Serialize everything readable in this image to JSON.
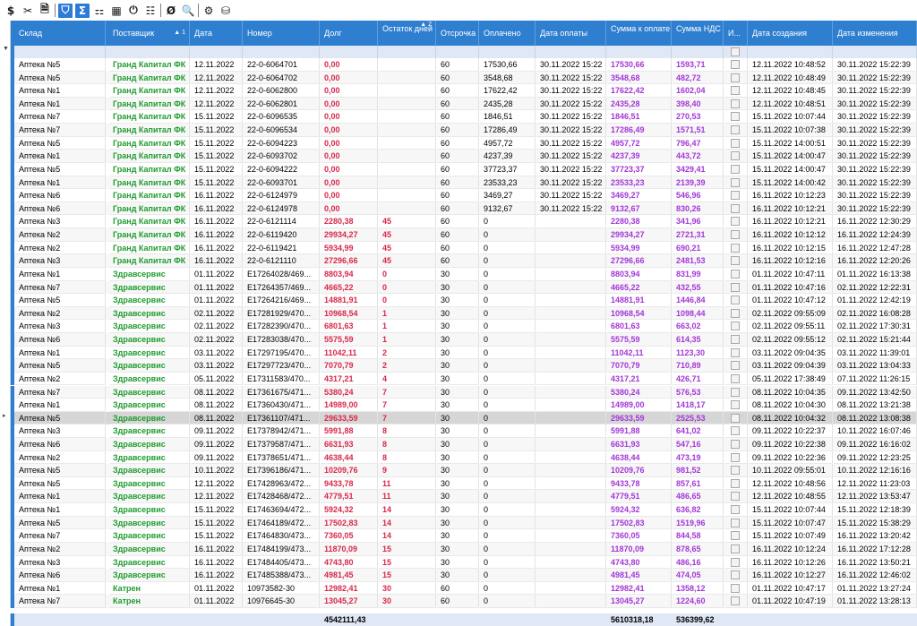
{
  "toolbar": {
    "buttons": [
      {
        "name": "dollar-icon",
        "glyph": "$",
        "active": false
      },
      {
        "name": "cut-icon",
        "glyph": "✂",
        "active": false
      },
      {
        "name": "document-icon",
        "glyph": "🗎",
        "active": false
      },
      {
        "name": "filter-icon",
        "glyph": "⛉",
        "active": true
      },
      {
        "name": "sum-icon",
        "glyph": "Σ",
        "active": true
      },
      {
        "name": "hierarchy-icon",
        "glyph": "⚏",
        "active": false
      },
      {
        "name": "grid-icon",
        "glyph": "▦",
        "active": false
      },
      {
        "name": "power-icon",
        "glyph": "⏻",
        "active": false
      },
      {
        "name": "table-icon",
        "glyph": "☷",
        "active": false
      },
      {
        "name": "null-icon",
        "glyph": "Ø",
        "active": false
      },
      {
        "name": "search-doc-icon",
        "glyph": "🔍",
        "active": false
      },
      {
        "name": "settings-icon",
        "glyph": "⚙",
        "active": false
      },
      {
        "name": "database-icon",
        "glyph": "⛁",
        "active": false
      }
    ]
  },
  "columns": [
    {
      "key": "sklad",
      "label": "Склад"
    },
    {
      "key": "supplier",
      "label": "Поставщик",
      "sort": "▲ 1"
    },
    {
      "key": "date",
      "label": "Дата"
    },
    {
      "key": "number",
      "label": "Номер"
    },
    {
      "key": "debt",
      "label": "Долг"
    },
    {
      "key": "days",
      "label": "Остаток дней",
      "sort": "▲ 2"
    },
    {
      "key": "delay",
      "label": "Отсрочка"
    },
    {
      "key": "paid",
      "label": "Оплачено"
    },
    {
      "key": "paydate",
      "label": "Дата оплаты"
    },
    {
      "key": "topay",
      "label": "Сумма к оплате"
    },
    {
      "key": "vat",
      "label": "Сумма НДС"
    },
    {
      "key": "flag",
      "label": "И..."
    },
    {
      "key": "created",
      "label": "Дата создания"
    },
    {
      "key": "modified",
      "label": "Дата изменения"
    }
  ],
  "rows": [
    {
      "sklad": "Аптека №5",
      "supplier": "Гранд Капитал ФК",
      "date": "12.11.2022",
      "number": "22-0-6064701",
      "debt": "0,00",
      "days": "",
      "delay": "60",
      "paid": "17530,66",
      "paydate": "30.11.2022 15:22",
      "topay": "17530,66",
      "vat": "1593,71",
      "created": "12.11.2022 10:48:52",
      "modified": "30.11.2022 15:22:39"
    },
    {
      "sklad": "Аптека №5",
      "supplier": "Гранд Капитал ФК",
      "date": "12.11.2022",
      "number": "22-0-6064702",
      "debt": "0,00",
      "days": "",
      "delay": "60",
      "paid": "3548,68",
      "paydate": "30.11.2022 15:22",
      "topay": "3548,68",
      "vat": "482,72",
      "created": "12.11.2022 10:48:49",
      "modified": "30.11.2022 15:22:39"
    },
    {
      "sklad": "Аптека №1",
      "supplier": "Гранд Капитал ФК",
      "date": "12.11.2022",
      "number": "22-0-6062800",
      "debt": "0,00",
      "days": "",
      "delay": "60",
      "paid": "17622,42",
      "paydate": "30.11.2022 15:22",
      "topay": "17622,42",
      "vat": "1602,04",
      "created": "12.11.2022 10:48:45",
      "modified": "30.11.2022 15:22:39"
    },
    {
      "sklad": "Аптека №1",
      "supplier": "Гранд Капитал ФК",
      "date": "12.11.2022",
      "number": "22-0-6062801",
      "debt": "0,00",
      "days": "",
      "delay": "60",
      "paid": "2435,28",
      "paydate": "30.11.2022 15:22",
      "topay": "2435,28",
      "vat": "398,40",
      "created": "12.11.2022 10:48:51",
      "modified": "30.11.2022 15:22:39"
    },
    {
      "sklad": "Аптека №7",
      "supplier": "Гранд Капитал ФК",
      "date": "15.11.2022",
      "number": "22-0-6096535",
      "debt": "0,00",
      "days": "",
      "delay": "60",
      "paid": "1846,51",
      "paydate": "30.11.2022 15:22",
      "topay": "1846,51",
      "vat": "270,53",
      "created": "15.11.2022 10:07:44",
      "modified": "30.11.2022 15:22:39"
    },
    {
      "sklad": "Аптека №7",
      "supplier": "Гранд Капитал ФК",
      "date": "15.11.2022",
      "number": "22-0-6096534",
      "debt": "0,00",
      "days": "",
      "delay": "60",
      "paid": "17286,49",
      "paydate": "30.11.2022 15:22",
      "topay": "17286,49",
      "vat": "1571,51",
      "created": "15.11.2022 10:07:38",
      "modified": "30.11.2022 15:22:39"
    },
    {
      "sklad": "Аптека №5",
      "supplier": "Гранд Капитал ФК",
      "date": "15.11.2022",
      "number": "22-0-6094223",
      "debt": "0,00",
      "days": "",
      "delay": "60",
      "paid": "4957,72",
      "paydate": "30.11.2022 15:22",
      "topay": "4957,72",
      "vat": "796,47",
      "created": "15.11.2022 14:00:51",
      "modified": "30.11.2022 15:22:39"
    },
    {
      "sklad": "Аптека №1",
      "supplier": "Гранд Капитал ФК",
      "date": "15.11.2022",
      "number": "22-0-6093702",
      "debt": "0,00",
      "days": "",
      "delay": "60",
      "paid": "4237,39",
      "paydate": "30.11.2022 15:22",
      "topay": "4237,39",
      "vat": "443,72",
      "created": "15.11.2022 14:00:47",
      "modified": "30.11.2022 15:22:39"
    },
    {
      "sklad": "Аптека №5",
      "supplier": "Гранд Капитал ФК",
      "date": "15.11.2022",
      "number": "22-0-6094222",
      "debt": "0,00",
      "days": "",
      "delay": "60",
      "paid": "37723,37",
      "paydate": "30.11.2022 15:22",
      "topay": "37723,37",
      "vat": "3429,41",
      "created": "15.11.2022 14:00:47",
      "modified": "30.11.2022 15:22:39"
    },
    {
      "sklad": "Аптека №1",
      "supplier": "Гранд Капитал ФК",
      "date": "15.11.2022",
      "number": "22-0-6093701",
      "debt": "0,00",
      "days": "",
      "delay": "60",
      "paid": "23533,23",
      "paydate": "30.11.2022 15:22",
      "topay": "23533,23",
      "vat": "2139,39",
      "created": "15.11.2022 14:00:42",
      "modified": "30.11.2022 15:22:39"
    },
    {
      "sklad": "Аптека №6",
      "supplier": "Гранд Капитал ФК",
      "date": "16.11.2022",
      "number": "22-0-6124979",
      "debt": "0,00",
      "days": "",
      "delay": "60",
      "paid": "3469,27",
      "paydate": "30.11.2022 15:22",
      "topay": "3469,27",
      "vat": "546,96",
      "created": "16.11.2022 10:12:23",
      "modified": "30.11.2022 15:22:39"
    },
    {
      "sklad": "Аптека №6",
      "supplier": "Гранд Капитал ФК",
      "date": "16.11.2022",
      "number": "22-0-6124978",
      "debt": "0,00",
      "days": "",
      "delay": "60",
      "paid": "9132,67",
      "paydate": "30.11.2022 15:22",
      "topay": "9132,67",
      "vat": "830,26",
      "created": "16.11.2022 10:12:21",
      "modified": "30.11.2022 15:22:39"
    },
    {
      "sklad": "Аптека №3",
      "supplier": "Гранд Капитал ФК",
      "date": "16.11.2022",
      "number": "22-0-6121114",
      "debt": "2280,38",
      "days": "45",
      "delay": "60",
      "paid": "0",
      "paydate": "",
      "topay": "2280,38",
      "vat": "341,96",
      "created": "16.11.2022 10:12:21",
      "modified": "16.11.2022 12:30:29"
    },
    {
      "sklad": "Аптека №2",
      "supplier": "Гранд Капитал ФК",
      "date": "16.11.2022",
      "number": "22-0-6119420",
      "debt": "29934,27",
      "days": "45",
      "delay": "60",
      "paid": "0",
      "paydate": "",
      "topay": "29934,27",
      "vat": "2721,31",
      "created": "16.11.2022 10:12:12",
      "modified": "16.11.2022 12:24:39"
    },
    {
      "sklad": "Аптека №2",
      "supplier": "Гранд Капитал ФК",
      "date": "16.11.2022",
      "number": "22-0-6119421",
      "debt": "5934,99",
      "days": "45",
      "delay": "60",
      "paid": "0",
      "paydate": "",
      "topay": "5934,99",
      "vat": "690,21",
      "created": "16.11.2022 10:12:15",
      "modified": "16.11.2022 12:47:28"
    },
    {
      "sklad": "Аптека №3",
      "supplier": "Гранд Капитал ФК",
      "date": "16.11.2022",
      "number": "22-0-6121110",
      "debt": "27296,66",
      "days": "45",
      "delay": "60",
      "paid": "0",
      "paydate": "",
      "topay": "27296,66",
      "vat": "2481,53",
      "created": "16.11.2022 10:12:16",
      "modified": "16.11.2022 12:20:26"
    },
    {
      "sklad": "Аптека №1",
      "supplier": "Здравсервис",
      "date": "01.11.2022",
      "number": "E17264028/469...",
      "debt": "8803,94",
      "days": "0",
      "delay": "30",
      "paid": "0",
      "paydate": "",
      "topay": "8803,94",
      "vat": "831,99",
      "created": "01.11.2022 10:47:11",
      "modified": "01.11.2022 16:13:38"
    },
    {
      "sklad": "Аптека №7",
      "supplier": "Здравсервис",
      "date": "01.11.2022",
      "number": "E17264357/469...",
      "debt": "4665,22",
      "days": "0",
      "delay": "30",
      "paid": "0",
      "paydate": "",
      "topay": "4665,22",
      "vat": "432,55",
      "created": "01.11.2022 10:47:16",
      "modified": "02.11.2022 12:22:31"
    },
    {
      "sklad": "Аптека №5",
      "supplier": "Здравсервис",
      "date": "01.11.2022",
      "number": "E17264216/469...",
      "debt": "14881,91",
      "days": "0",
      "delay": "30",
      "paid": "0",
      "paydate": "",
      "topay": "14881,91",
      "vat": "1446,84",
      "created": "01.11.2022 10:47:12",
      "modified": "01.11.2022 12:42:19"
    },
    {
      "sklad": "Аптека №2",
      "supplier": "Здравсервис",
      "date": "02.11.2022",
      "number": "E17281929/470...",
      "debt": "10968,54",
      "days": "1",
      "delay": "30",
      "paid": "0",
      "paydate": "",
      "topay": "10968,54",
      "vat": "1098,44",
      "created": "02.11.2022 09:55:09",
      "modified": "02.11.2022 16:08:28"
    },
    {
      "sklad": "Аптека №3",
      "supplier": "Здравсервис",
      "date": "02.11.2022",
      "number": "E17282390/470...",
      "debt": "6801,63",
      "days": "1",
      "delay": "30",
      "paid": "0",
      "paydate": "",
      "topay": "6801,63",
      "vat": "663,02",
      "created": "02.11.2022 09:55:11",
      "modified": "02.11.2022 17:30:31"
    },
    {
      "sklad": "Аптека №6",
      "supplier": "Здравсервис",
      "date": "02.11.2022",
      "number": "E17283038/470...",
      "debt": "5575,59",
      "days": "1",
      "delay": "30",
      "paid": "0",
      "paydate": "",
      "topay": "5575,59",
      "vat": "614,35",
      "created": "02.11.2022 09:55:12",
      "modified": "02.11.2022 15:21:44"
    },
    {
      "sklad": "Аптека №1",
      "supplier": "Здравсервис",
      "date": "03.11.2022",
      "number": "E17297195/470...",
      "debt": "11042,11",
      "days": "2",
      "delay": "30",
      "paid": "0",
      "paydate": "",
      "topay": "11042,11",
      "vat": "1123,30",
      "created": "03.11.2022 09:04:35",
      "modified": "03.11.2022 11:39:01"
    },
    {
      "sklad": "Аптека №5",
      "supplier": "Здравсервис",
      "date": "03.11.2022",
      "number": "E17297723/470...",
      "debt": "7070,79",
      "days": "2",
      "delay": "30",
      "paid": "0",
      "paydate": "",
      "topay": "7070,79",
      "vat": "710,89",
      "created": "03.11.2022 09:04:39",
      "modified": "03.11.2022 13:04:33"
    },
    {
      "sklad": "Аптека №2",
      "supplier": "Здравсервис",
      "date": "05.11.2022",
      "number": "E17311583/470...",
      "debt": "4317,21",
      "days": "4",
      "delay": "30",
      "paid": "0",
      "paydate": "",
      "topay": "4317,21",
      "vat": "426,71",
      "created": "05.11.2022 17:38:49",
      "modified": "07.11.2022 11:26:15"
    },
    {
      "sklad": "Аптека №7",
      "supplier": "Здравсервис",
      "date": "08.11.2022",
      "number": "E17361675/471...",
      "debt": "5380,24",
      "days": "7",
      "delay": "30",
      "paid": "0",
      "paydate": "",
      "topay": "5380,24",
      "vat": "576,53",
      "created": "08.11.2022 10:04:35",
      "modified": "09.11.2022 13:42:50"
    },
    {
      "sklad": "Аптека №1",
      "supplier": "Здравсервис",
      "date": "08.11.2022",
      "number": "E17360430/471...",
      "debt": "14989,00",
      "days": "7",
      "delay": "30",
      "paid": "0",
      "paydate": "",
      "topay": "14989,00",
      "vat": "1418,17",
      "created": "08.11.2022 10:04:30",
      "modified": "08.11.2022 13:21:38"
    },
    {
      "sklad": "Аптека №5",
      "supplier": "Здравсервис",
      "date": "08.11.2022",
      "number": "E17361107/471...",
      "debt": "29633,59",
      "days": "7",
      "delay": "30",
      "paid": "0",
      "paydate": "",
      "topay": "29633,59",
      "vat": "2525,53",
      "created": "08.11.2022 10:04:32",
      "modified": "08.11.2022 13:08:38",
      "selected": true
    },
    {
      "sklad": "Аптека №3",
      "supplier": "Здравсервис",
      "date": "09.11.2022",
      "number": "E17378942/471...",
      "debt": "5991,88",
      "days": "8",
      "delay": "30",
      "paid": "0",
      "paydate": "",
      "topay": "5991,88",
      "vat": "641,02",
      "created": "09.11.2022 10:22:37",
      "modified": "10.11.2022 16:07:46"
    },
    {
      "sklad": "Аптека №6",
      "supplier": "Здравсервис",
      "date": "09.11.2022",
      "number": "E17379587/471...",
      "debt": "6631,93",
      "days": "8",
      "delay": "30",
      "paid": "0",
      "paydate": "",
      "topay": "6631,93",
      "vat": "547,16",
      "created": "09.11.2022 10:22:38",
      "modified": "09.11.2022 16:16:02"
    },
    {
      "sklad": "Аптека №2",
      "supplier": "Здравсервис",
      "date": "09.11.2022",
      "number": "E17378651/471...",
      "debt": "4638,44",
      "days": "8",
      "delay": "30",
      "paid": "0",
      "paydate": "",
      "topay": "4638,44",
      "vat": "473,19",
      "created": "09.11.2022 10:22:36",
      "modified": "09.11.2022 12:23:25"
    },
    {
      "sklad": "Аптека №5",
      "supplier": "Здравсервис",
      "date": "10.11.2022",
      "number": "E17396186/471...",
      "debt": "10209,76",
      "days": "9",
      "delay": "30",
      "paid": "0",
      "paydate": "",
      "topay": "10209,76",
      "vat": "981,52",
      "created": "10.11.2022 09:55:01",
      "modified": "10.11.2022 12:16:16"
    },
    {
      "sklad": "Аптека №5",
      "supplier": "Здравсервис",
      "date": "12.11.2022",
      "number": "E17428963/472...",
      "debt": "9433,78",
      "days": "11",
      "delay": "30",
      "paid": "0",
      "paydate": "",
      "topay": "9433,78",
      "vat": "857,61",
      "created": "12.11.2022 10:48:56",
      "modified": "12.11.2022 11:23:03"
    },
    {
      "sklad": "Аптека №1",
      "supplier": "Здравсервис",
      "date": "12.11.2022",
      "number": "E17428468/472...",
      "debt": "4779,51",
      "days": "11",
      "delay": "30",
      "paid": "0",
      "paydate": "",
      "topay": "4779,51",
      "vat": "486,65",
      "created": "12.11.2022 10:48:55",
      "modified": "12.11.2022 13:53:47"
    },
    {
      "sklad": "Аптека №1",
      "supplier": "Здравсервис",
      "date": "15.11.2022",
      "number": "E17463694/472...",
      "debt": "5924,32",
      "days": "14",
      "delay": "30",
      "paid": "0",
      "paydate": "",
      "topay": "5924,32",
      "vat": "636,82",
      "created": "15.11.2022 10:07:44",
      "modified": "15.11.2022 12:18:39"
    },
    {
      "sklad": "Аптека №5",
      "supplier": "Здравсервис",
      "date": "15.11.2022",
      "number": "E17464189/472...",
      "debt": "17502,83",
      "days": "14",
      "delay": "30",
      "paid": "0",
      "paydate": "",
      "topay": "17502,83",
      "vat": "1519,96",
      "created": "15.11.2022 10:07:47",
      "modified": "15.11.2022 15:38:29"
    },
    {
      "sklad": "Аптека №7",
      "supplier": "Здравсервис",
      "date": "15.11.2022",
      "number": "E17464830/473...",
      "debt": "7360,05",
      "days": "14",
      "delay": "30",
      "paid": "0",
      "paydate": "",
      "topay": "7360,05",
      "vat": "844,58",
      "created": "15.11.2022 10:07:49",
      "modified": "16.11.2022 13:20:42"
    },
    {
      "sklad": "Аптека №2",
      "supplier": "Здравсервис",
      "date": "16.11.2022",
      "number": "E17484199/473...",
      "debt": "11870,09",
      "days": "15",
      "delay": "30",
      "paid": "0",
      "paydate": "",
      "topay": "11870,09",
      "vat": "878,65",
      "created": "16.11.2022 10:12:24",
      "modified": "16.11.2022 17:12:28"
    },
    {
      "sklad": "Аптека №3",
      "supplier": "Здравсервис",
      "date": "16.11.2022",
      "number": "E17484405/473...",
      "debt": "4743,80",
      "days": "15",
      "delay": "30",
      "paid": "0",
      "paydate": "",
      "topay": "4743,80",
      "vat": "486,16",
      "created": "16.11.2022 10:12:26",
      "modified": "16.11.2022 13:50:21"
    },
    {
      "sklad": "Аптека №6",
      "supplier": "Здравсервис",
      "date": "16.11.2022",
      "number": "E17485388/473...",
      "debt": "4981,45",
      "days": "15",
      "delay": "30",
      "paid": "0",
      "paydate": "",
      "topay": "4981,45",
      "vat": "474,05",
      "created": "16.11.2022 10:12:27",
      "modified": "16.11.2022 12:46:02"
    },
    {
      "sklad": "Аптека №1",
      "supplier": "Катрен",
      "date": "01.11.2022",
      "number": "10973582-30",
      "debt": "12982,41",
      "days": "30",
      "delay": "60",
      "paid": "0",
      "paydate": "",
      "topay": "12982,41",
      "vat": "1358,12",
      "created": "01.11.2022 10:47:17",
      "modified": "01.11.2022 13:27:24"
    },
    {
      "sklad": "Аптека №7",
      "supplier": "Катрен",
      "date": "01.11.2022",
      "number": "10976645-30",
      "debt": "13045,27",
      "days": "30",
      "delay": "60",
      "paid": "0",
      "paydate": "",
      "topay": "13045,27",
      "vat": "1224,60",
      "created": "01.11.2022 10:47:19",
      "modified": "01.11.2022 13:28:13"
    }
  ],
  "footer": {
    "debt_total": "4542111,43",
    "topay_total": "5610318,18",
    "vat_total": "536399,62"
  },
  "colors": {
    "header_bg": "#2f7fd0",
    "supplier_text": "#1e9c2e",
    "debt_text": "#d8284a",
    "sum_text": "#a336d6",
    "selected_row": "#d6d6d6"
  }
}
